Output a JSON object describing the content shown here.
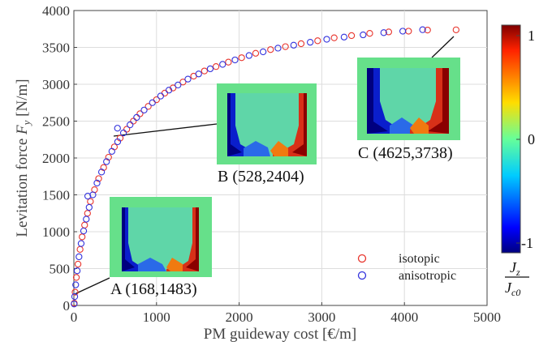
{
  "chart_data": {
    "type": "scatter",
    "xlabel_main": "PM guideway cost [",
    "xlabel_unit": "€/m]",
    "ylabel_main": "Levitation force ",
    "ylabel_symbol": "F",
    "ylabel_sub": "y",
    "ylabel_unit": " [N/m]",
    "xlim": [
      0,
      5000
    ],
    "ylim": [
      0,
      4000
    ],
    "xticks": [
      "0",
      "1000",
      "2000",
      "3000",
      "4000",
      "5000"
    ],
    "yticks": [
      "0",
      "500",
      "1000",
      "1500",
      "2000",
      "2500",
      "3000",
      "3500",
      "4000"
    ],
    "grid": true,
    "legend_position": "bottom-right",
    "series": [
      {
        "name": "isotopic",
        "color": "#e8342c",
        "points": [
          [
            5,
            30
          ],
          [
            15,
            180
          ],
          [
            30,
            380
          ],
          [
            50,
            560
          ],
          [
            75,
            760
          ],
          [
            100,
            930
          ],
          [
            130,
            1090
          ],
          [
            165,
            1250
          ],
          [
            200,
            1410
          ],
          [
            250,
            1570
          ],
          [
            300,
            1720
          ],
          [
            360,
            1870
          ],
          [
            420,
            2010
          ],
          [
            490,
            2150
          ],
          [
            560,
            2270
          ],
          [
            640,
            2390
          ],
          [
            720,
            2500
          ],
          [
            800,
            2600
          ],
          [
            900,
            2700
          ],
          [
            1000,
            2790
          ],
          [
            1100,
            2880
          ],
          [
            1200,
            2950
          ],
          [
            1320,
            3030
          ],
          [
            1450,
            3110
          ],
          [
            1580,
            3180
          ],
          [
            1720,
            3240
          ],
          [
            1870,
            3300
          ],
          [
            2030,
            3360
          ],
          [
            2200,
            3420
          ],
          [
            2380,
            3470
          ],
          [
            2560,
            3510
          ],
          [
            2750,
            3550
          ],
          [
            2950,
            3590
          ],
          [
            3150,
            3630
          ],
          [
            3360,
            3660
          ],
          [
            3580,
            3690
          ],
          [
            3810,
            3710
          ],
          [
            4050,
            3720
          ],
          [
            4280,
            3735
          ],
          [
            4625,
            3738
          ]
        ]
      },
      {
        "name": "anisotropic",
        "color": "#3333dd",
        "points": [
          [
            3,
            20
          ],
          [
            10,
            120
          ],
          [
            22,
            280
          ],
          [
            40,
            470
          ],
          [
            62,
            660
          ],
          [
            88,
            840
          ],
          [
            118,
            1010
          ],
          [
            150,
            1170
          ],
          [
            168,
            1483
          ],
          [
            185,
            1330
          ],
          [
            230,
            1500
          ],
          [
            280,
            1660
          ],
          [
            335,
            1810
          ],
          [
            395,
            1950
          ],
          [
            460,
            2090
          ],
          [
            528,
            2404
          ],
          [
            530,
            2220
          ],
          [
            600,
            2340
          ],
          [
            680,
            2450
          ],
          [
            760,
            2550
          ],
          [
            850,
            2650
          ],
          [
            950,
            2750
          ],
          [
            1050,
            2840
          ],
          [
            1150,
            2920
          ],
          [
            1260,
            2990
          ],
          [
            1380,
            3070
          ],
          [
            1510,
            3140
          ],
          [
            1650,
            3210
          ],
          [
            1800,
            3270
          ],
          [
            1950,
            3330
          ],
          [
            2120,
            3390
          ],
          [
            2290,
            3440
          ],
          [
            2470,
            3490
          ],
          [
            2660,
            3530
          ],
          [
            2860,
            3570
          ],
          [
            3060,
            3610
          ],
          [
            3270,
            3640
          ],
          [
            3500,
            3670
          ],
          [
            3750,
            3700
          ],
          [
            3980,
            3720
          ],
          [
            4220,
            3740
          ]
        ]
      }
    ],
    "annotations": [
      {
        "label": "A (168,1483)"
      },
      {
        "label": "B (528,2404)"
      },
      {
        "label": "C (4625,3738)"
      }
    ],
    "colorbar": {
      "ticks": [
        "1",
        "0",
        "-1"
      ],
      "label_main": "J",
      "label_main_sub": "z",
      "label_den": "J",
      "label_den_sub": "c0"
    }
  }
}
